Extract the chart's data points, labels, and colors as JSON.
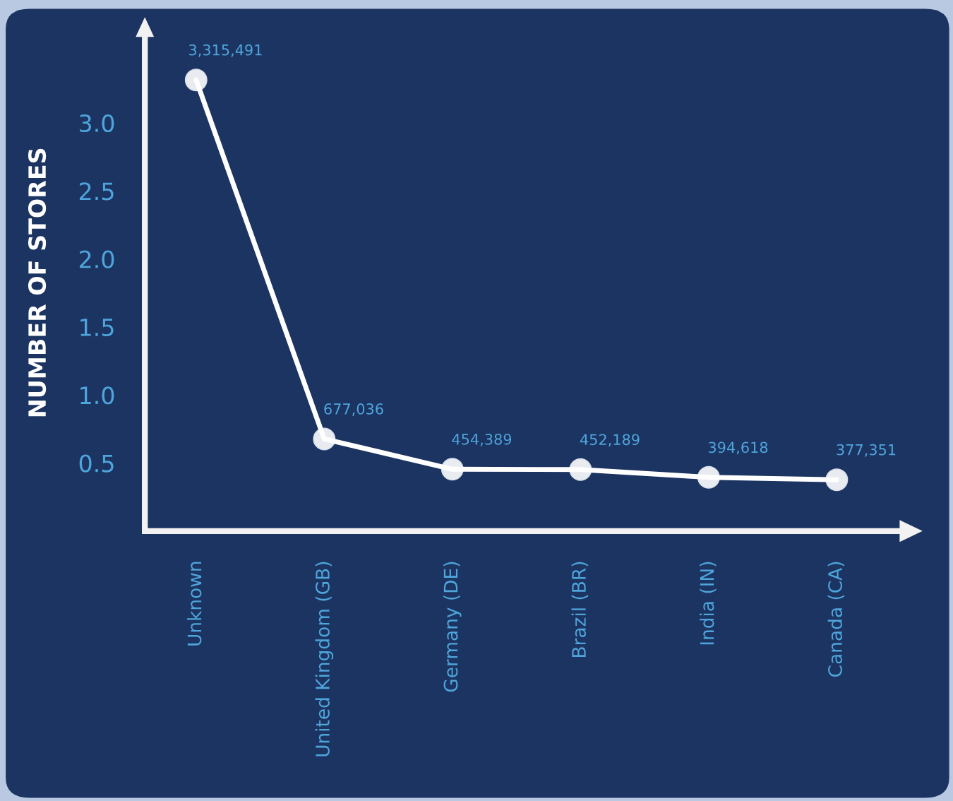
{
  "chart_data": {
    "type": "line",
    "ylabel": "NUMBER OF STORES",
    "categories": [
      "Unknown",
      "United Kingdom (GB)",
      "Germany (DE)",
      "Brazil (BR)",
      "India (IN)",
      "Canada (CA)"
    ],
    "series": [
      {
        "color": "#ffffff",
        "values": [
          3.315491,
          0.677036,
          0.454389,
          0.452189,
          0.394618,
          0.377351
        ]
      }
    ],
    "annotations": [
      {
        "text": "3,315,491",
        "x": "Unknown",
        "y": 3.315491
      },
      {
        "text": "677,036",
        "x": "United Kingdom (GB)",
        "y": 0.677036
      },
      {
        "text": "454,389",
        "x": "Germany (DE)",
        "y": 0.454389
      },
      {
        "text": "452,189",
        "x": "Brazil (BR)",
        "y": 0.452189
      },
      {
        "text": "394,618",
        "x": "India (IN)",
        "y": 0.394618
      },
      {
        "text": "377,351",
        "x": "Canada (CA)",
        "y": 0.377351
      }
    ],
    "ylim": [
      0,
      3.65
    ],
    "yticks": [
      {
        "value": 0.5,
        "label": "0.5"
      },
      {
        "value": 1.0,
        "label": "1.0"
      },
      {
        "value": 1.5,
        "label": "1.5"
      },
      {
        "value": 2.0,
        "label": "2.0"
      },
      {
        "value": 2.5,
        "label": "2.5"
      },
      {
        "value": 3.0,
        "label": "3.0"
      }
    ],
    "marker": "circle",
    "line_style": "solid",
    "grid": false,
    "legend": false
  }
}
